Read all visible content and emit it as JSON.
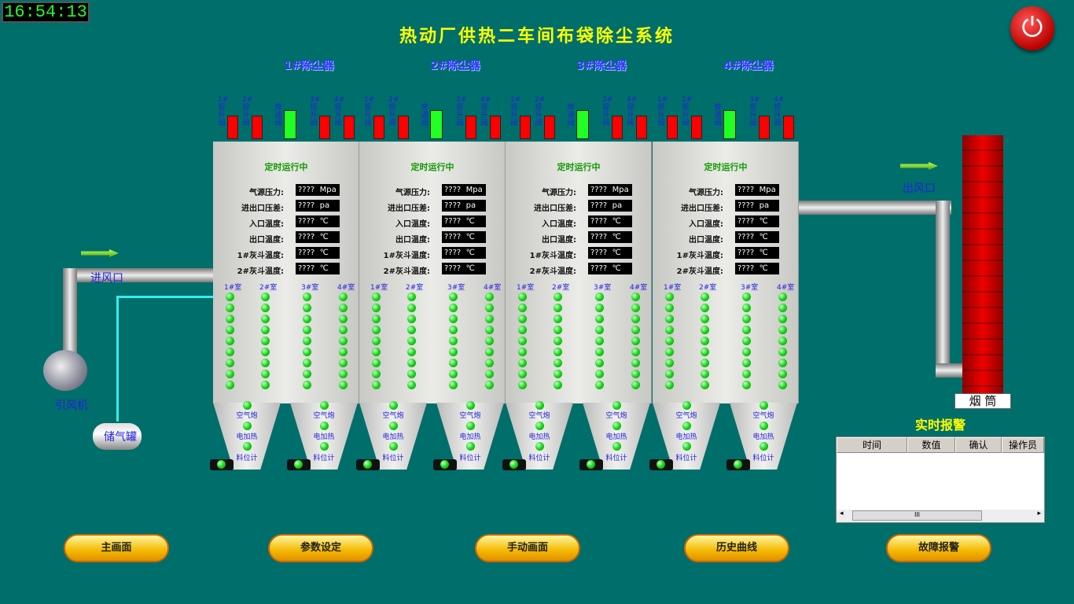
{
  "clock": "16:54:13",
  "title": "热动厂供热二车间布袋除尘系统",
  "units": [
    {
      "name": "1#除尘器"
    },
    {
      "name": "2#除尘器"
    },
    {
      "name": "3#除尘器"
    },
    {
      "name": "4#除尘器"
    }
  ],
  "valves": [
    "1#提升阀",
    "2#提升阀",
    "旁通阀",
    "3#提升阀",
    "4#提升阀"
  ],
  "valve_colors": {
    "lift": "#ff0000",
    "bypass": "#22ff22"
  },
  "status": "定时运行中",
  "params": [
    {
      "label": "气源压力:",
      "value": "????",
      "unit": "Mpa"
    },
    {
      "label": "进出口压差:",
      "value": "????",
      "unit": "pa"
    },
    {
      "label": "入口温度:",
      "value": "????",
      "unit": "℃"
    },
    {
      "label": "出口温度:",
      "value": "????",
      "unit": "℃"
    },
    {
      "label": "1#灰斗温度:",
      "value": "????",
      "unit": "℃"
    },
    {
      "label": "2#灰斗温度:",
      "value": "????",
      "unit": "℃"
    }
  ],
  "rooms": [
    "1#室",
    "2#室",
    "3#室",
    "4#室"
  ],
  "hopper_labels": [
    "空气炮",
    "电加热",
    "料位计"
  ],
  "labels": {
    "inlet": "进风口",
    "outlet": "出风口",
    "fan": "引风机",
    "tank": "储气罐",
    "chimney": "烟 筒"
  },
  "alarm": {
    "title": "实时报警",
    "columns": [
      "时间",
      "数值",
      "确认",
      "操作员"
    ],
    "scroll_thumb": "III"
  },
  "nav": [
    "主画面",
    "参数设定",
    "手动画面",
    "历史曲线",
    "故障报警"
  ]
}
